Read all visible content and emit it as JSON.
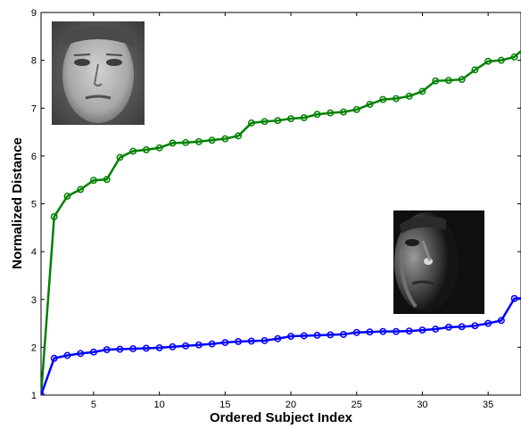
{
  "chart_data": {
    "type": "line",
    "title": "",
    "xlabel": "Ordered Subject Index",
    "ylabel": "Normalized Distance",
    "xlim": [
      1,
      37.5
    ],
    "ylim": [
      1,
      9
    ],
    "xticks": [
      5,
      10,
      15,
      20,
      25,
      30,
      35
    ],
    "yticks": [
      1,
      2,
      3,
      4,
      5,
      6,
      7,
      8,
      9
    ],
    "grid": false,
    "legend": "none",
    "x": [
      1,
      2,
      3,
      4,
      5,
      6,
      7,
      8,
      9,
      10,
      11,
      12,
      13,
      14,
      15,
      16,
      17,
      18,
      19,
      20,
      21,
      22,
      23,
      24,
      25,
      26,
      27,
      28,
      29,
      30,
      31,
      32,
      33,
      34,
      35,
      36,
      37,
      38
    ],
    "series": [
      {
        "color": "#008000",
        "marker": "circle",
        "values": [
          1.0,
          4.73,
          5.16,
          5.3,
          5.49,
          5.51,
          5.97,
          6.1,
          6.13,
          6.17,
          6.27,
          6.28,
          6.3,
          6.33,
          6.36,
          6.42,
          6.69,
          6.72,
          6.74,
          6.78,
          6.8,
          6.87,
          6.9,
          6.92,
          6.97,
          7.08,
          7.18,
          7.2,
          7.25,
          7.35,
          7.57,
          7.58,
          7.6,
          7.8,
          7.98,
          8.0,
          8.07,
          8.32
        ]
      },
      {
        "color": "#0000ff",
        "marker": "circle",
        "values": [
          1.0,
          1.77,
          1.83,
          1.87,
          1.9,
          1.95,
          1.96,
          1.97,
          1.98,
          1.99,
          2.01,
          2.03,
          2.05,
          2.07,
          2.1,
          2.12,
          2.13,
          2.14,
          2.18,
          2.23,
          2.24,
          2.25,
          2.26,
          2.27,
          2.31,
          2.32,
          2.33,
          2.33,
          2.34,
          2.36,
          2.38,
          2.42,
          2.43,
          2.45,
          2.5,
          2.56,
          3.02,
          3.03
        ]
      }
    ],
    "annotations": [
      {
        "kind": "image",
        "icon": "face-frontal-lit-photo"
      },
      {
        "kind": "image",
        "icon": "face-side-lit-photo"
      }
    ]
  }
}
